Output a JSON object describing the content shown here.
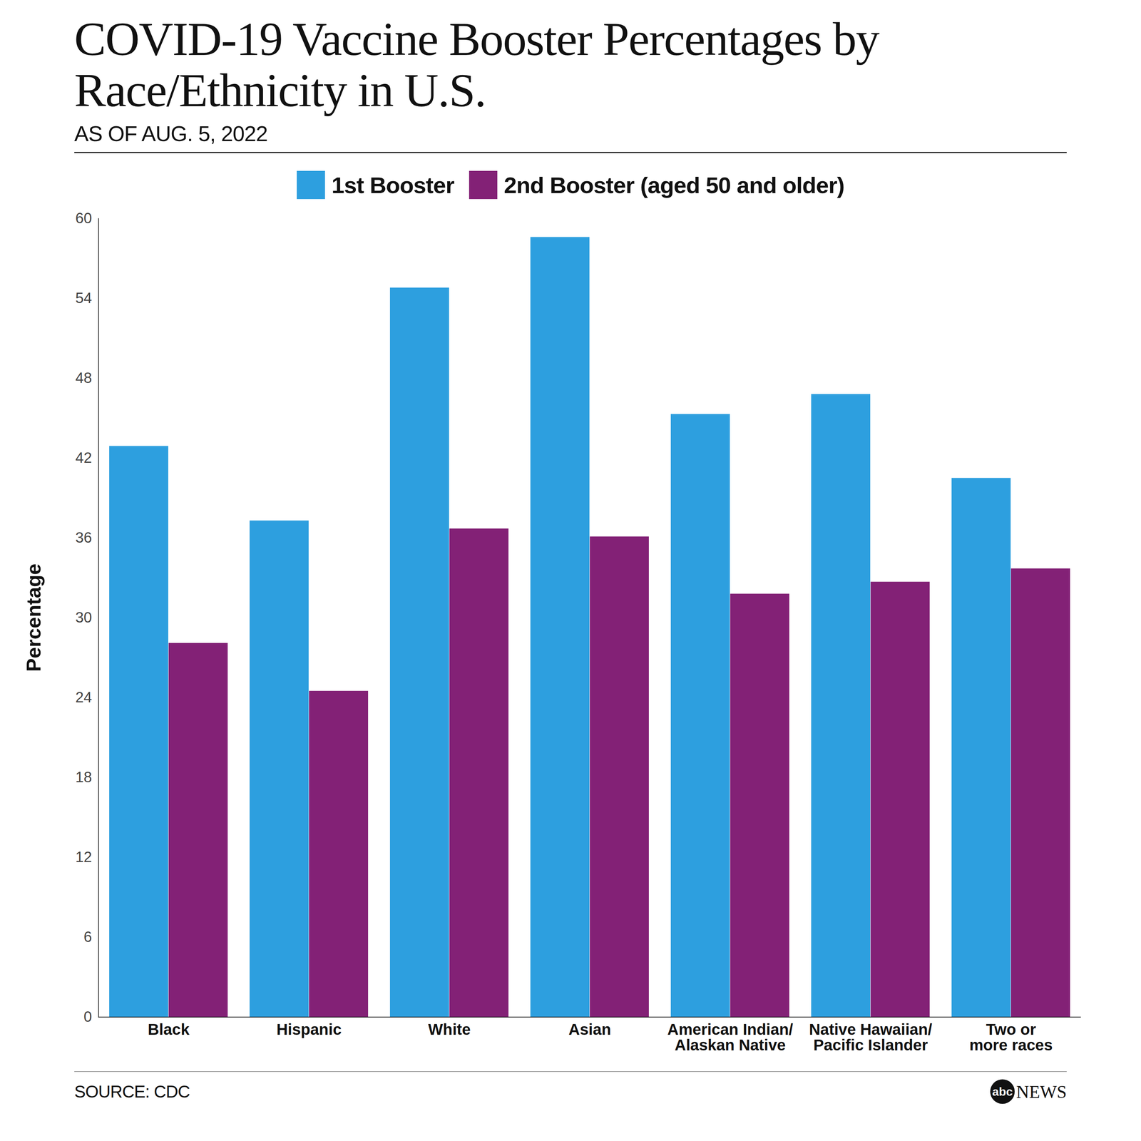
{
  "chart_data": {
    "type": "bar",
    "title": "COVID-19 Vaccine Booster Percentages by Race/Ethnicity in U.S.",
    "subtitle": "AS OF AUG. 5, 2022",
    "y_label": "Percentage",
    "source": "SOURCE: CDC",
    "credit": "abc NEWS",
    "categories": [
      "Black",
      "Hispanic",
      "White",
      "Asian",
      "American Indian/\nAlaskan Native",
      "Native Hawaiian/\nPacific Islander",
      "Two or\nmore races"
    ],
    "series": [
      {
        "name": "1st Booster",
        "color": "#2d9fdf",
        "values": [
          42.9,
          37.3,
          54.8,
          58.6,
          45.3,
          46.8,
          40.5
        ]
      },
      {
        "name": "2nd Booster (aged 50 and older)",
        "color": "#832176",
        "values": [
          28.1,
          24.5,
          36.7,
          36.1,
          31.8,
          32.7,
          33.7
        ]
      }
    ],
    "ylim": [
      0,
      60
    ],
    "yticks": [
      0,
      6,
      12,
      18,
      24,
      30,
      36,
      42,
      48,
      54,
      60
    ],
    "grid": false,
    "legend": "top"
  }
}
